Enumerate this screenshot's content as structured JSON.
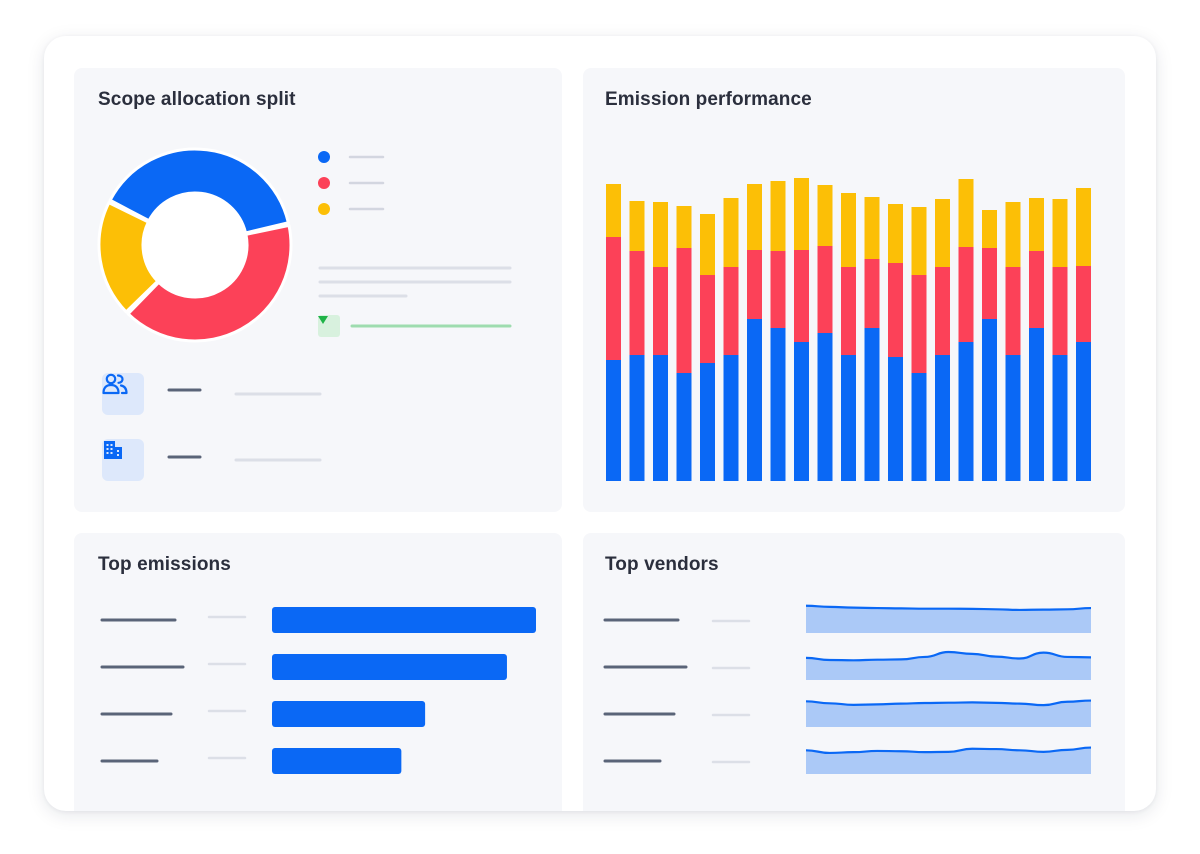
{
  "cards": {
    "scope": {
      "title": "Scope allocation split"
    },
    "performance": {
      "title": "Emission performance"
    },
    "emissions": {
      "title": "Top emissions"
    },
    "vendors": {
      "title": "Top vendors"
    }
  },
  "colors": {
    "blue": "#0a68f5",
    "red": "#fc4158",
    "yellow": "#fcbf06",
    "area_fill": "#abc9f7",
    "trend_green": "#1fb348"
  },
  "icons": {
    "people": "people-icon",
    "building": "building-icon",
    "trend": "down-arrow-icon"
  },
  "chart_data": [
    {
      "type": "pie",
      "variant": "donut",
      "title": "",
      "slices": [
        {
          "color": "#0a68f5",
          "value": 39
        },
        {
          "color": "#fc4158",
          "value": 41
        },
        {
          "color": "#fcbf06",
          "value": 20
        }
      ],
      "legend": "right"
    },
    {
      "type": "bar",
      "stacked": true,
      "title": "",
      "ylim": [
        0,
        300
      ],
      "series": [
        {
          "color": "#0a68f5",
          "values": [
            121,
            126,
            126,
            108,
            118,
            126,
            162,
            153,
            139,
            148,
            126,
            153,
            124,
            108,
            126,
            139,
            162,
            126,
            153,
            126,
            139
          ]
        },
        {
          "color": "#fc4158",
          "values": [
            123,
            104,
            88,
            125,
            88,
            88,
            69,
            77,
            92,
            87,
            88,
            69,
            94,
            98,
            88,
            95,
            71,
            88,
            77,
            88,
            76
          ]
        },
        {
          "color": "#fcbf06",
          "values": [
            53,
            50,
            65,
            42,
            61,
            69,
            66,
            70,
            72,
            61,
            74,
            62,
            59,
            68,
            68,
            68,
            38,
            65,
            53,
            68,
            78
          ]
        }
      ]
    },
    {
      "type": "bar",
      "orientation": "horizontal",
      "title": "",
      "values": [
        100,
        89,
        58,
        49
      ],
      "xlim": [
        0,
        100
      ]
    },
    {
      "type": "area",
      "title": "",
      "ylim": [
        0,
        1
      ],
      "series": [
        {
          "values": [
            0.95,
            0.88,
            0.83,
            0.8,
            0.78,
            0.76,
            0.76,
            0.75,
            0.72,
            0.68,
            0.7,
            0.72,
            0.8
          ]
        },
        {
          "values": [
            0.62,
            0.48,
            0.46,
            0.5,
            0.52,
            0.68,
            1.0,
            0.88,
            0.7,
            0.58,
            0.96,
            0.68,
            0.65
          ]
        },
        {
          "values": [
            0.85,
            0.72,
            0.62,
            0.65,
            0.7,
            0.74,
            0.76,
            0.78,
            0.75,
            0.7,
            0.6,
            0.82,
            0.9
          ]
        },
        {
          "values": [
            0.72,
            0.55,
            0.6,
            0.68,
            0.66,
            0.6,
            0.62,
            0.82,
            0.8,
            0.72,
            0.62,
            0.75,
            0.9
          ]
        }
      ]
    }
  ]
}
